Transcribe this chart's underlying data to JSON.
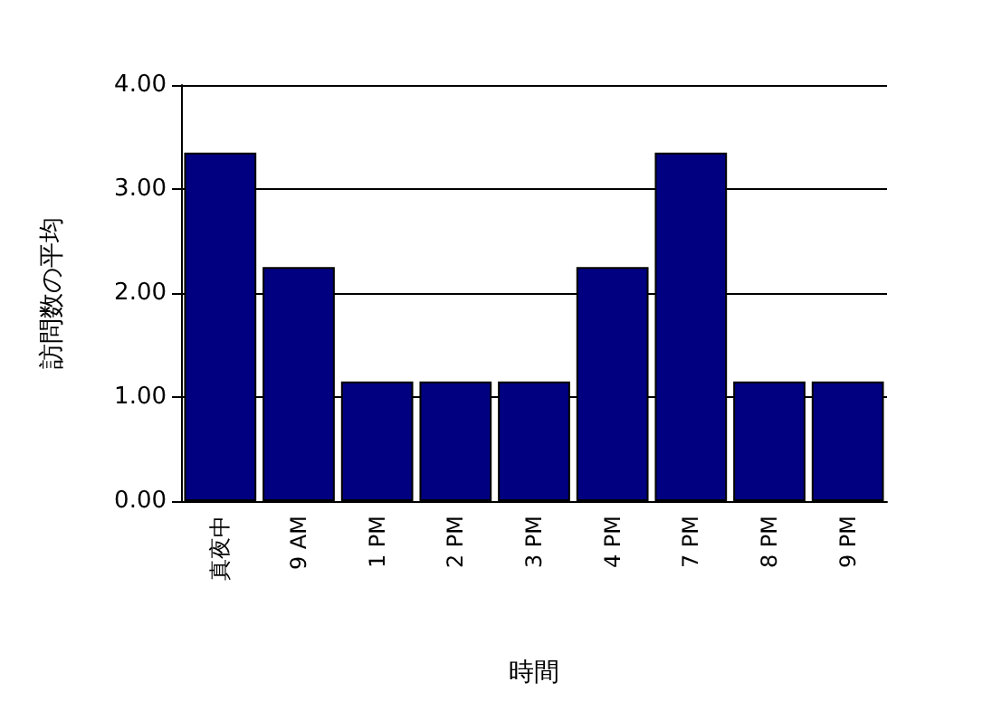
{
  "chart_data": {
    "type": "bar",
    "xlabel": "時間",
    "ylabel": "訪問数の平均",
    "categories": [
      "真夜中",
      "9 AM",
      "1 PM",
      "2 PM",
      "3 PM",
      "4 PM",
      "7 PM",
      "8 PM",
      "9 PM"
    ],
    "values": [
      3.35,
      2.25,
      1.15,
      1.15,
      1.15,
      2.25,
      3.35,
      1.15,
      1.15
    ],
    "color": "#000080",
    "ylim": [
      0,
      4
    ],
    "yticks": [
      {
        "value": 0,
        "label": "0.00"
      },
      {
        "value": 1,
        "label": "1.00"
      },
      {
        "value": 2,
        "label": "2.00"
      },
      {
        "value": 3,
        "label": "3.00"
      },
      {
        "value": 4,
        "label": "4.00"
      }
    ],
    "grid": "y"
  }
}
